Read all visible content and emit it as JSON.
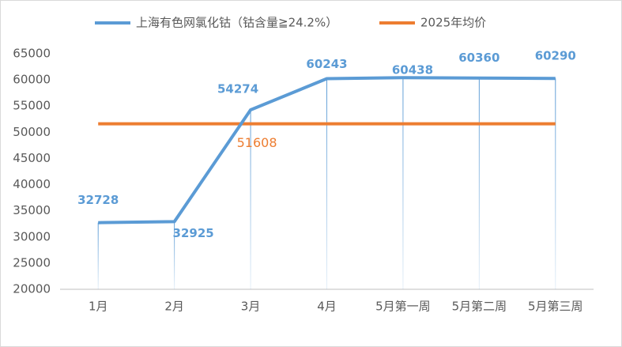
{
  "chart_data": {
    "type": "line",
    "categories": [
      "1月",
      "2月",
      "3月",
      "4月",
      "5月第一周",
      "5月第二周",
      "5月第三周"
    ],
    "series": [
      {
        "name": "上海有色网氯化钴（钴含量≧24.2%）",
        "color": "#5b9bd5",
        "values": [
          32728,
          32925,
          54274,
          60243,
          60438,
          60360,
          60290
        ]
      },
      {
        "name": "2025年均价",
        "color": "#ed7d31",
        "values": [
          51608,
          51608,
          51608,
          51608,
          51608,
          51608,
          51608
        ]
      }
    ],
    "ylim": [
      20000,
      65000
    ],
    "yticks": [
      20000,
      25000,
      30000,
      35000,
      40000,
      45000,
      50000,
      55000,
      60000,
      65000
    ],
    "grid": false,
    "drop_lines": true
  }
}
